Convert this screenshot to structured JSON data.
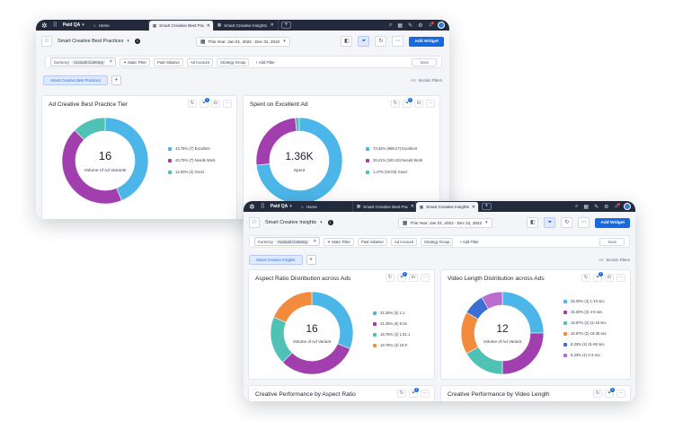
{
  "colors": {
    "blue": "#4cb6e8",
    "purple": "#a23fae",
    "teal": "#4fc2b5",
    "orange": "#f38b3f",
    "royal": "#3b6fd1",
    "accent": "#1769e0",
    "topbar": "#232a3b"
  },
  "back": {
    "workspace": "Paid QA",
    "tabs": [
      {
        "label": "Home"
      },
      {
        "label": "Smart Creative Best Pra"
      },
      {
        "label": "Smart Creative Insights"
      }
    ],
    "dashboard_name": "Smart Creative Best Practices",
    "date_range": "This Year: Jan 01, 2022 - Dec 31, 2022",
    "add_widget": "Add Widget",
    "filters": {
      "currency_label": "Currency",
      "currency_value": "Account Currency",
      "static_filter": "Static Filter",
      "paid_initiative": "Paid Initiative",
      "ad_account": "Ad Account",
      "strategy_group": "Strategy Group",
      "add_filter": "Add Filter",
      "save": "Save"
    },
    "section_tab": "Smart Creative Best Practices",
    "section_filters": "Section Filters",
    "card1": {
      "title": "Ad Creative Best Practice Tier",
      "center_value": "16",
      "center_label": "Volume of Ad Variants",
      "legend": [
        "43.75% (7) Excellent",
        "43.75% (7) Needs Work",
        "12.50% (2) Good"
      ]
    },
    "card2": {
      "title": "Spent on Excellent Ad",
      "center_value": "1.36K",
      "center_label": "Spent",
      "legend": [
        "73.32% (999.27) Excellent",
        "25.21% (343.43) Needs Work",
        "1.47% (20.03) Good"
      ]
    }
  },
  "front": {
    "workspace": "Paid QA",
    "tabs": [
      {
        "label": "Home"
      },
      {
        "label": "Smart Creative Best Pra"
      },
      {
        "label": "Smart Creative Insights"
      }
    ],
    "dashboard_name": "Smart Creative Insights",
    "date_range": "This Year: Jan 01, 2022 - Dec 31, 2022",
    "add_widget": "Add Widget",
    "filters": {
      "currency_label": "Currency",
      "currency_value": "Account Currency",
      "static_filter": "Static Filter",
      "paid_initiative": "Paid Initiative",
      "ad_account": "Ad Account",
      "strategy_group": "Strategy Group",
      "add_filter": "Add Filter",
      "save": "Save"
    },
    "section_tab": "Smart Creative Insights",
    "section_filters": "Section Filters",
    "card1": {
      "title": "Aspect Ratio Distribution across Ads",
      "center_value": "16",
      "center_label": "Volume of Ad Variant",
      "legend": [
        "31.25% (5) 1:1",
        "31.25% (5) 9:16",
        "18.75% (3) 1.91:1",
        "18.75% (3) 16:9"
      ]
    },
    "card2": {
      "title": "Video Length Distribution across Ads",
      "center_value": "12",
      "center_label": "Volume of Ad Variant",
      "legend": [
        "25.00% (3) 1-10 sec",
        "25.00% (3) 4-5 sec",
        "16.67% (2) 11-15 sec",
        "16.67% (2) 16-30 sec",
        "8.33% (1) 31-60 sec",
        "8.33% (1) 0-3 sec"
      ]
    },
    "card3": {
      "title": "Creative Performance by Aspect Ratio"
    },
    "card4": {
      "title": "Creative Performance by Video Length"
    }
  },
  "chart_data": [
    {
      "type": "pie",
      "title": "Ad Creative Best Practice Tier",
      "labels": [
        "Excellent",
        "Needs Work",
        "Good"
      ],
      "values": [
        43.75,
        43.75,
        12.5
      ],
      "counts": [
        7,
        7,
        2
      ],
      "colors": [
        "#4cb6e8",
        "#a23fae",
        "#4fc2b5"
      ]
    },
    {
      "type": "pie",
      "title": "Spent on Excellent Ad",
      "labels": [
        "Excellent",
        "Needs Work",
        "Good"
      ],
      "values": [
        73.32,
        25.21,
        1.47
      ],
      "amounts": [
        999.27,
        343.43,
        20.03
      ],
      "colors": [
        "#4cb6e8",
        "#a23fae",
        "#4fc2b5"
      ]
    },
    {
      "type": "pie",
      "title": "Aspect Ratio Distribution across Ads",
      "labels": [
        "1:1",
        "9:16",
        "1.91:1",
        "16:9"
      ],
      "values": [
        31.25,
        31.25,
        18.75,
        18.75
      ],
      "counts": [
        5,
        5,
        3,
        3
      ],
      "colors": [
        "#4cb6e8",
        "#a23fae",
        "#4fc2b5",
        "#f38b3f"
      ]
    },
    {
      "type": "pie",
      "title": "Video Length Distribution across Ads",
      "labels": [
        "1-10 sec",
        "4-5 sec",
        "11-15 sec",
        "16-30 sec",
        "31-60 sec",
        "0-3 sec"
      ],
      "values": [
        25,
        25,
        16.67,
        16.67,
        8.33,
        8.33
      ],
      "counts": [
        3,
        3,
        2,
        2,
        1,
        1
      ],
      "colors": [
        "#4cb6e8",
        "#a23fae",
        "#4fc2b5",
        "#f38b3f",
        "#3b6fd1",
        "#b86cd0"
      ]
    }
  ]
}
